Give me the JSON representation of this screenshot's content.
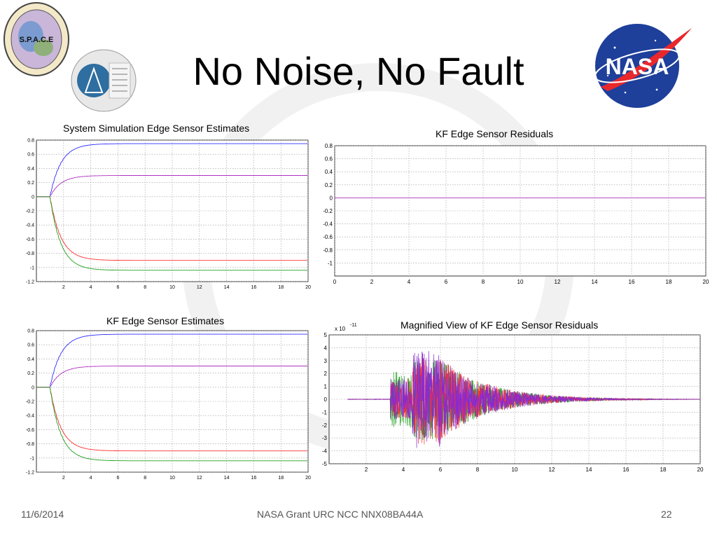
{
  "slide": {
    "title": "No Noise, No Fault",
    "footer_date": "11/6/2014",
    "footer_center": "NASA Grant URC NCC NNX08BA44A",
    "page_number": "22"
  },
  "logos": {
    "space_label": "S.P.A.C.E",
    "nasa_label": "NASA"
  },
  "colors": {
    "blue": "#2f2fff",
    "magenta": "#b030c0",
    "red": "#ff3030",
    "green": "#20a020",
    "purple": "#8a2ad0"
  },
  "chart_data": [
    {
      "id": "system-sim",
      "type": "line",
      "title": "System Simulation Edge Sensor Estimates",
      "xlim": [
        0,
        20
      ],
      "ylim": [
        -1.2,
        0.8
      ],
      "xticks": [
        2,
        4,
        6,
        8,
        10,
        12,
        14,
        16,
        18,
        20
      ],
      "yticks": [
        0.8,
        0.6,
        0.4,
        0.2,
        0,
        -0.2,
        -0.4,
        -0.6,
        -0.8,
        -1,
        -1.2
      ],
      "grid": true,
      "series": [
        {
          "color": "#2f2fff",
          "final": 0.75
        },
        {
          "color": "#b030c0",
          "final": 0.3
        },
        {
          "color": "#ff3030",
          "final": -0.9
        },
        {
          "color": "#20a020",
          "final": -1.04
        }
      ],
      "step_time": 1
    },
    {
      "id": "kf-residuals",
      "type": "line",
      "title": "KF Edge Sensor Residuals",
      "xlim": [
        0,
        20
      ],
      "ylim": [
        -1.2,
        0.8
      ],
      "xticks": [
        0,
        2,
        4,
        6,
        8,
        10,
        12,
        14,
        16,
        18,
        20
      ],
      "yticks": [
        0.8,
        0.6,
        0.4,
        0.2,
        0,
        -0.2,
        -0.4,
        -0.6,
        -0.8,
        -1
      ],
      "grid": true,
      "series": [
        {
          "color": "#b030c0",
          "final": 0
        }
      ]
    },
    {
      "id": "kf-estimates",
      "type": "line",
      "title": "KF Edge Sensor Estimates",
      "xlim": [
        0,
        20
      ],
      "ylim": [
        -1.2,
        0.8
      ],
      "xticks": [
        2,
        4,
        6,
        8,
        10,
        12,
        14,
        16,
        18,
        20
      ],
      "yticks": [
        0.8,
        0.6,
        0.4,
        0.2,
        0,
        -0.2,
        -0.4,
        -0.6,
        -0.8,
        -1,
        -1.2
      ],
      "grid": true,
      "series": [
        {
          "color": "#2f2fff",
          "final": 0.75
        },
        {
          "color": "#b030c0",
          "final": 0.3
        },
        {
          "color": "#ff3030",
          "final": -0.9
        },
        {
          "color": "#20a020",
          "final": -1.04
        }
      ],
      "step_time": 1
    },
    {
      "id": "magnified",
      "type": "line",
      "title": "Magnified View of KF Edge Sensor Residuals",
      "scale_exponent": "x 10",
      "scale_power": "-11",
      "xlim": [
        0,
        20
      ],
      "ylim": [
        -5,
        5
      ],
      "xticks": [
        2,
        4,
        6,
        8,
        10,
        12,
        14,
        16,
        18,
        20
      ],
      "yticks": [
        5,
        4,
        3,
        2,
        1,
        0,
        -1,
        -2,
        -3,
        -4,
        -5
      ],
      "grid": true,
      "series": [
        {
          "color": "#20a020"
        },
        {
          "color": "#ff3030"
        },
        {
          "color": "#8a2ad0"
        }
      ]
    }
  ]
}
